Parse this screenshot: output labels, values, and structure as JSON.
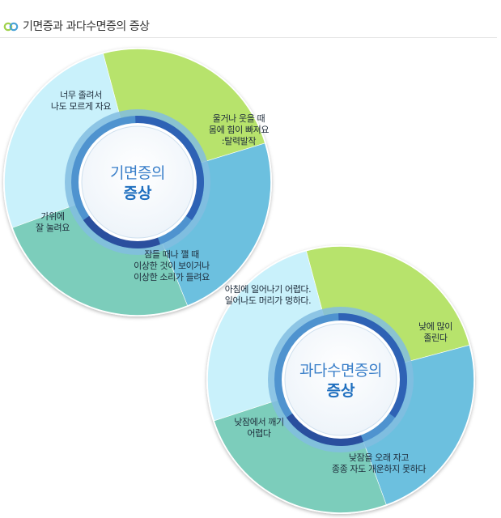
{
  "header": {
    "title": "기면증과 과다수면증의 증상",
    "icon": "double-ring-icon"
  },
  "colors": {
    "cyan": "#c9f1fb",
    "green": "#b7e36c",
    "blue": "#6cc0df",
    "teal": "#7ccdbb",
    "ring_dark": "#2e62b5",
    "ring_mid": "#4f93cf",
    "ring_light": "#83bde0"
  },
  "diagrams": [
    {
      "center": {
        "line1": "기면증의",
        "line2": "증상"
      },
      "segments": [
        {
          "color": "green",
          "lines": [
            "울거나 웃을 때",
            "몸에 힘이 빠져요",
            ":탈력발작"
          ]
        },
        {
          "color": "blue",
          "lines": [
            "잠들 때나 깰 때",
            "이상한 것이 보이거나",
            "이상한 소리가 들려요"
          ]
        },
        {
          "color": "teal",
          "lines": [
            "가위에",
            "잘 눌려요"
          ]
        },
        {
          "color": "cyan",
          "lines": [
            "너무 졸려서",
            "나도 모르게 자요"
          ]
        }
      ]
    },
    {
      "center": {
        "line1": "과다수면증의",
        "line2": "증상"
      },
      "segments": [
        {
          "color": "green",
          "lines": [
            "낮에 많이",
            "졸린다"
          ]
        },
        {
          "color": "blue",
          "lines": [
            "낮잠을 오래 자고",
            "종종 자도 개운하지 못하다"
          ]
        },
        {
          "color": "teal",
          "lines": [
            "낮잠에서 깨기",
            "어렵다"
          ]
        },
        {
          "color": "cyan",
          "lines": [
            "아침에 일어나기 어렵다.",
            "일어나도 머리가 멍하다."
          ]
        }
      ]
    }
  ]
}
